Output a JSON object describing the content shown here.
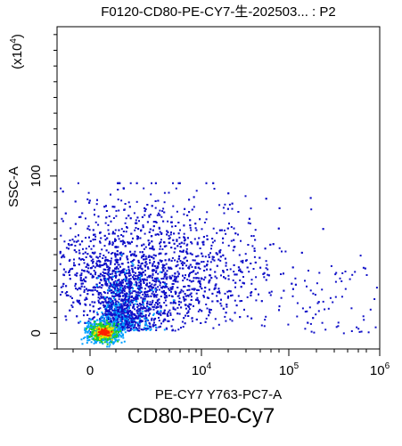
{
  "chart_data": {
    "type": "scatter",
    "style": "flow-cytometry density dot plot",
    "title": "F0120-CD80-PE-CY7-生-202503... : P2",
    "xlabel": "PE-CY7 Y763-PC7-A",
    "ylabel": "SSC-A",
    "y_multiplier": "(x10",
    "y_multiplier_exp": "4",
    "y_multiplier_close": ")",
    "x_scale": "biexponential",
    "y_scale": "linear",
    "x_ticks": [
      {
        "value": "0",
        "base": "0",
        "exp": ""
      },
      {
        "value": "1e4",
        "base": "10",
        "exp": "4"
      },
      {
        "value": "1e5",
        "base": "10",
        "exp": "5"
      },
      {
        "value": "1e6",
        "base": "10",
        "exp": "6"
      }
    ],
    "y_ticks": [
      {
        "value": 0,
        "label": "0"
      },
      {
        "value": 100,
        "label": "100"
      }
    ],
    "ylim": [
      -10,
      195
    ],
    "density_colors": [
      "#1010c8",
      "#00a0ff",
      "#20d020",
      "#f0e000",
      "#ff2000"
    ],
    "populations": [
      {
        "name": "main",
        "x_center": "approx 1e3",
        "y_center": 8,
        "density": "high"
      },
      {
        "name": "spread",
        "x_range": [
          "0",
          "1e6"
        ],
        "y_range": [
          0,
          95
        ],
        "density": "low"
      }
    ]
  },
  "caption": "CD80-PE0-Cy7"
}
